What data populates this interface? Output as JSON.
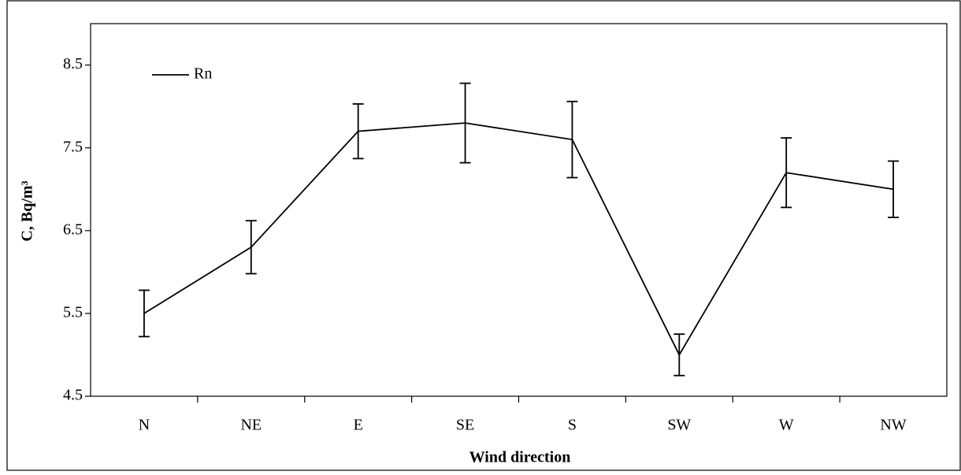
{
  "chart_data": {
    "type": "line",
    "xlabel": "Wind direction",
    "ylabel": "C, Bq/m³",
    "categories": [
      "N",
      "NE",
      "E",
      "SE",
      "S",
      "SW",
      "W",
      "NW"
    ],
    "series": [
      {
        "name": "Rn",
        "color": "#000000",
        "values": [
          5.5,
          6.3,
          7.7,
          7.8,
          7.6,
          5.0,
          7.2,
          7.0
        ],
        "errors": [
          0.28,
          0.32,
          0.33,
          0.48,
          0.46,
          0.25,
          0.42,
          0.34
        ]
      }
    ],
    "ylim": [
      4.5,
      9.0
    ],
    "yticks": [
      4.5,
      5.5,
      6.5,
      7.5,
      8.5
    ],
    "legend": "upper left"
  }
}
